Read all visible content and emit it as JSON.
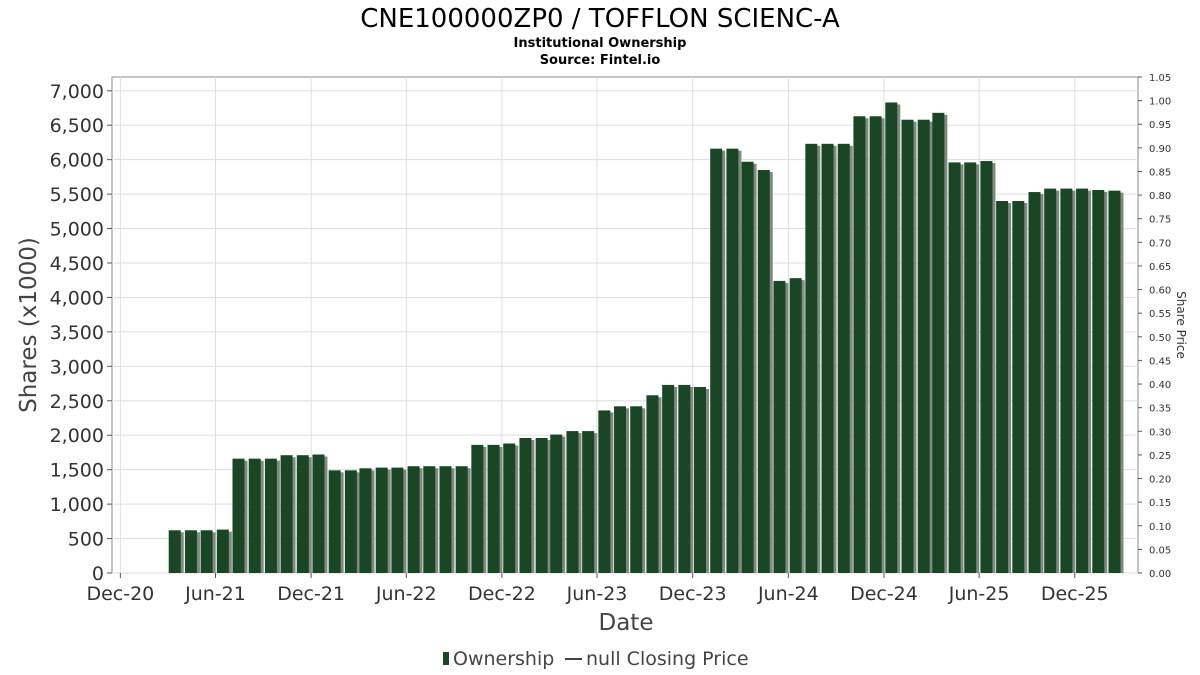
{
  "title": "CNE100000ZP0 / TOFFLON SCIENC-A",
  "subtitle": "Institutional Ownership",
  "source": "Source: Fintel.io",
  "colors": {
    "bar": "#1a4625",
    "bar_shadow": "#7f8a80",
    "grid": "#dddddd",
    "frame": "#888888"
  },
  "chart_data": {
    "type": "bar",
    "xlabel": "Date",
    "ylabel": "Shares (x1000)",
    "y2label": "Share Price",
    "x_tick_labels": [
      "Dec-20",
      "Jun-21",
      "Dec-21",
      "Jun-22",
      "Dec-22",
      "Jun-23",
      "Dec-23",
      "Jun-24",
      "Dec-24",
      "Jun-25",
      "Dec-25"
    ],
    "y_ticks": [
      "0",
      "500",
      "1,000",
      "1,500",
      "2,000",
      "2,500",
      "3,000",
      "3,500",
      "4,000",
      "4,500",
      "5,000",
      "5,500",
      "6,000",
      "6,500",
      "7,000"
    ],
    "y2_ticks": [
      "0.00",
      "0.05",
      "0.10",
      "0.15",
      "0.20",
      "0.25",
      "0.30",
      "0.35",
      "0.40",
      "0.45",
      "0.50",
      "0.55",
      "0.60",
      "0.65",
      "0.70",
      "0.75",
      "0.80",
      "0.85",
      "0.90",
      "0.95",
      "1.00",
      "1.05"
    ],
    "ylim": [
      0,
      7200
    ],
    "y2lim": [
      0,
      1.05
    ],
    "xlim": [
      "2020-11-15",
      "2026-04-01"
    ],
    "grid": true,
    "series": [
      {
        "name": "Ownership",
        "x": [
          "2021-03-15",
          "2021-04-15",
          "2021-05-15",
          "2021-06-15",
          "2021-07-15",
          "2021-08-15",
          "2021-09-15",
          "2021-10-15",
          "2021-11-15",
          "2021-12-15",
          "2022-01-15",
          "2022-02-15",
          "2022-03-15",
          "2022-04-15",
          "2022-05-15",
          "2022-06-15",
          "2022-07-15",
          "2022-08-15",
          "2022-09-15",
          "2022-10-15",
          "2022-11-15",
          "2022-12-15",
          "2023-01-15",
          "2023-02-15",
          "2023-03-15",
          "2023-04-15",
          "2023-05-15",
          "2023-06-15",
          "2023-07-15",
          "2023-08-15",
          "2023-09-15",
          "2023-10-15",
          "2023-11-15",
          "2023-12-15",
          "2024-01-15",
          "2024-02-15",
          "2024-03-15",
          "2024-04-15",
          "2024-05-15",
          "2024-06-15",
          "2024-07-15",
          "2024-08-15",
          "2024-09-15",
          "2024-10-15",
          "2024-11-15",
          "2024-12-15",
          "2025-01-15",
          "2025-02-15",
          "2025-03-15",
          "2025-04-15",
          "2025-05-15",
          "2025-06-15",
          "2025-07-15",
          "2025-08-15",
          "2025-09-15",
          "2025-10-15",
          "2025-11-15",
          "2025-12-15",
          "2026-01-15",
          "2026-02-15"
        ],
        "values": [
          620,
          620,
          620,
          630,
          1660,
          1660,
          1660,
          1710,
          1710,
          1720,
          1490,
          1490,
          1520,
          1530,
          1530,
          1550,
          1550,
          1550,
          1550,
          1860,
          1860,
          1880,
          1960,
          1960,
          2010,
          2060,
          2060,
          2360,
          2420,
          2420,
          2580,
          2730,
          2730,
          2700,
          6160,
          6160,
          5970,
          5850,
          4240,
          4280,
          6230,
          6230,
          6230,
          6630,
          6630,
          6830,
          6580,
          6580,
          6680,
          5960,
          5960,
          5980,
          5400,
          5400,
          5530,
          5580,
          5580,
          5580,
          5560,
          5550
        ]
      },
      {
        "name": "null Closing Price",
        "values": []
      }
    ]
  }
}
